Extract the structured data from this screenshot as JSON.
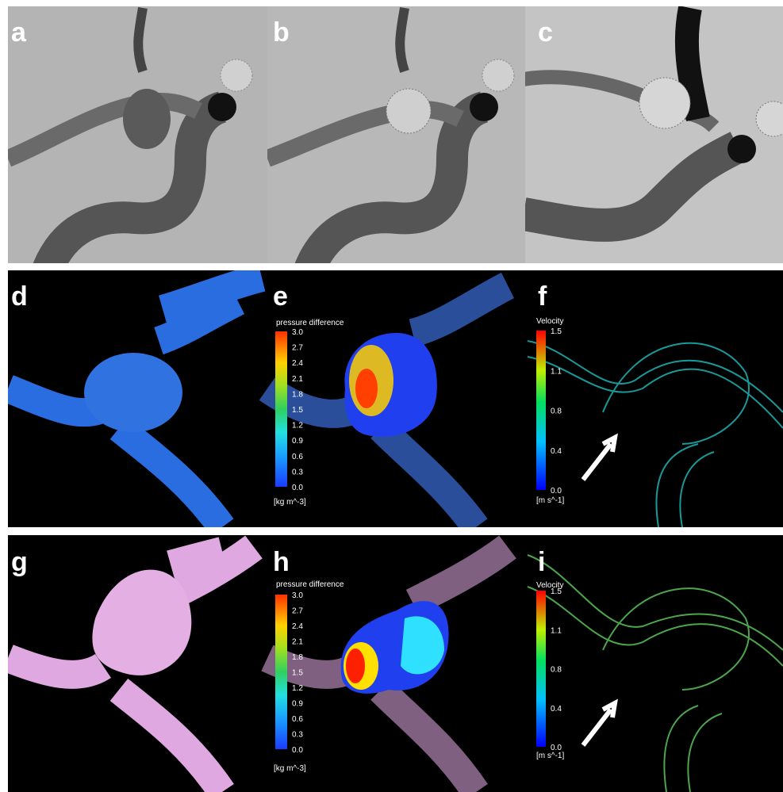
{
  "panels": [
    {
      "label": "a"
    },
    {
      "label": "b"
    },
    {
      "label": "c"
    },
    {
      "label": "d"
    },
    {
      "label": "e"
    },
    {
      "label": "f"
    },
    {
      "label": "g"
    },
    {
      "label": "h"
    },
    {
      "label": "i"
    }
  ],
  "colorbars": [
    {
      "title": "pressure difference",
      "ticks": [
        "3.0",
        "2.7",
        "2.4",
        "2.1",
        "1.8",
        "1.5",
        "1.2",
        "0.9",
        "0.6",
        "0.3",
        "0.0"
      ],
      "unit": "[kg m^-3]"
    },
    {
      "title": "Velocity",
      "ticks": [
        "1.5",
        "1.1",
        "0.8",
        "0.4",
        "0.0"
      ],
      "unit": "[m s^-1]"
    },
    {
      "title": "pressure difference",
      "ticks": [
        "3.0",
        "2.7",
        "2.4",
        "2.1",
        "1.8",
        "1.5",
        "1.2",
        "0.9",
        "0.6",
        "0.3",
        "0.0"
      ],
      "unit": "[kg m^-3]"
    },
    {
      "title": "Velocity",
      "ticks": [
        "1.5",
        "1.1",
        "0.8",
        "0.4",
        "0.0"
      ],
      "unit": "[m s^-1]"
    }
  ]
}
